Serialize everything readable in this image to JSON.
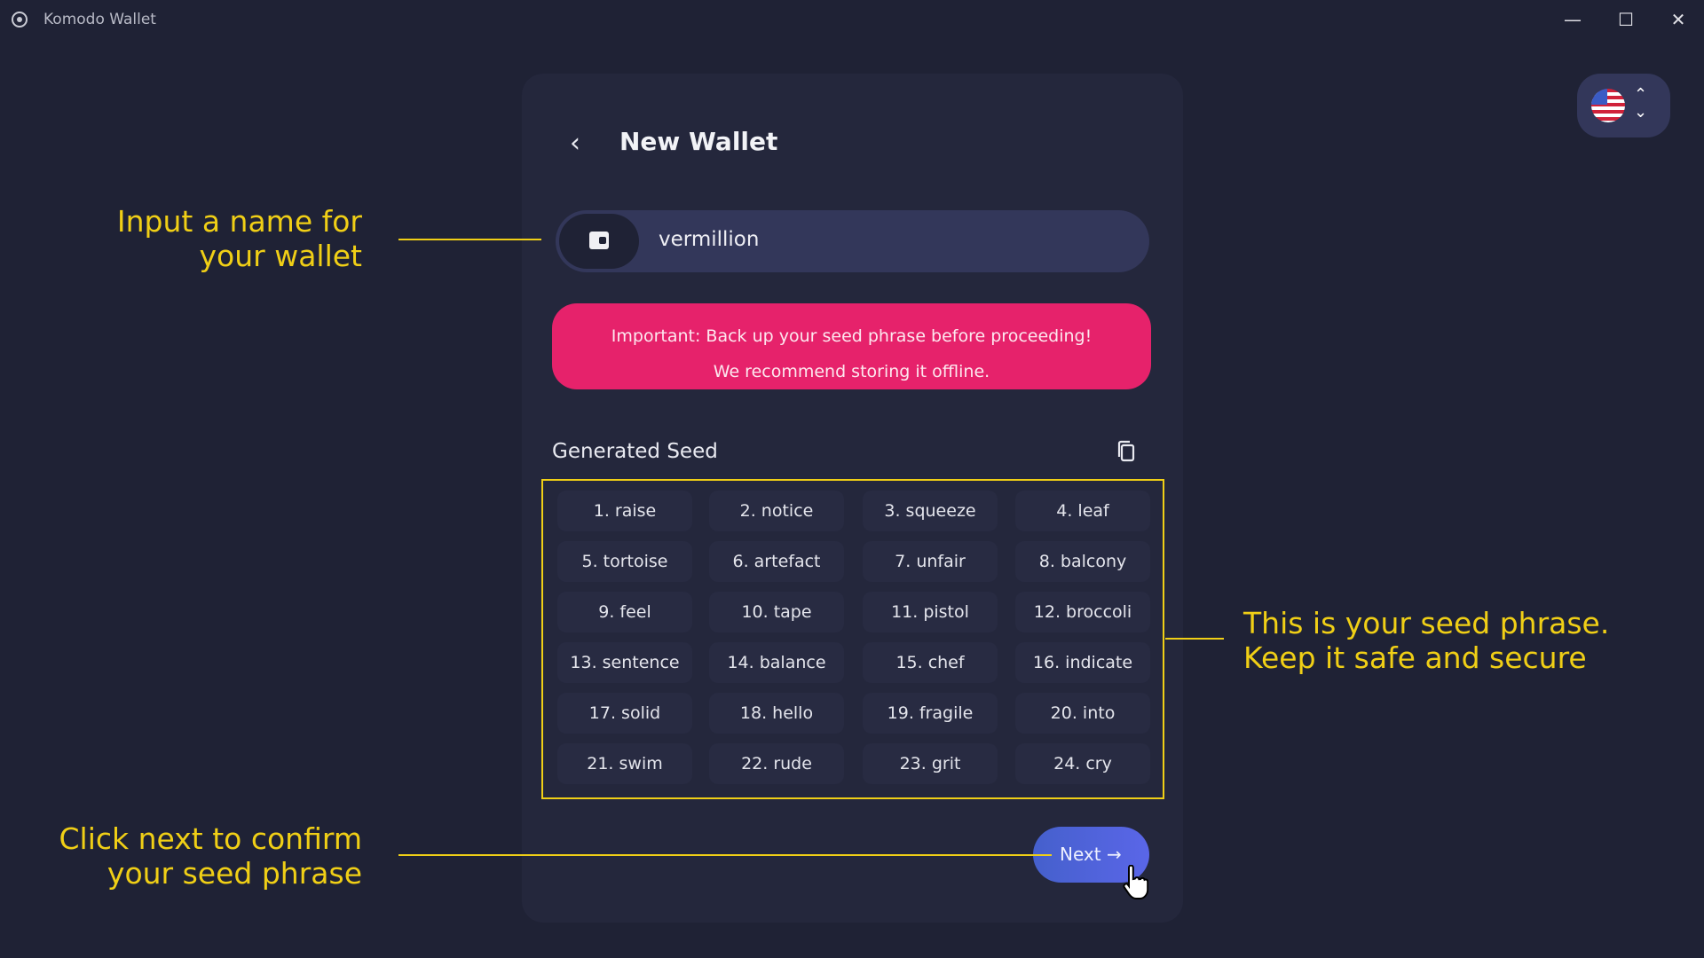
{
  "window": {
    "title": "Komodo Wallet",
    "minimize": "—",
    "maximize": "☐",
    "close": "✕"
  },
  "header": {
    "back": "‹",
    "title": "New Wallet"
  },
  "wallet_name": {
    "value": "vermillion",
    "icon": "wallet-icon"
  },
  "banner": {
    "line1": "Important: Back up your seed phrase before proceeding!",
    "line2": "We recommend storing it offline.",
    "color": "#e6226b"
  },
  "seed": {
    "label": "Generated Seed",
    "words": [
      "1. raise",
      "2. notice",
      "3. squeeze",
      "4. leaf",
      "5. tortoise",
      "6. artefact",
      "7. unfair",
      "8. balcony",
      "9. feel",
      "10. tape",
      "11. pistol",
      "12. broccoli",
      "13. sentence",
      "14. balance",
      "15. chef",
      "16. indicate",
      "17. solid",
      "18. hello",
      "19. fragile",
      "20. into",
      "21. swim",
      "22. rude",
      "23. grit",
      "24. cry"
    ]
  },
  "next_button": {
    "label": "Next →"
  },
  "language": {
    "flag": "us-flag-icon",
    "chevron": "⌃⌄"
  },
  "annotations": {
    "name": [
      "Input a name for",
      "your wallet"
    ],
    "seed": [
      "This is your seed phrase.",
      "Keep it safe and secure"
    ],
    "next": [
      "Click next to confirm",
      "your seed phrase"
    ],
    "color": "#f0cf16"
  }
}
